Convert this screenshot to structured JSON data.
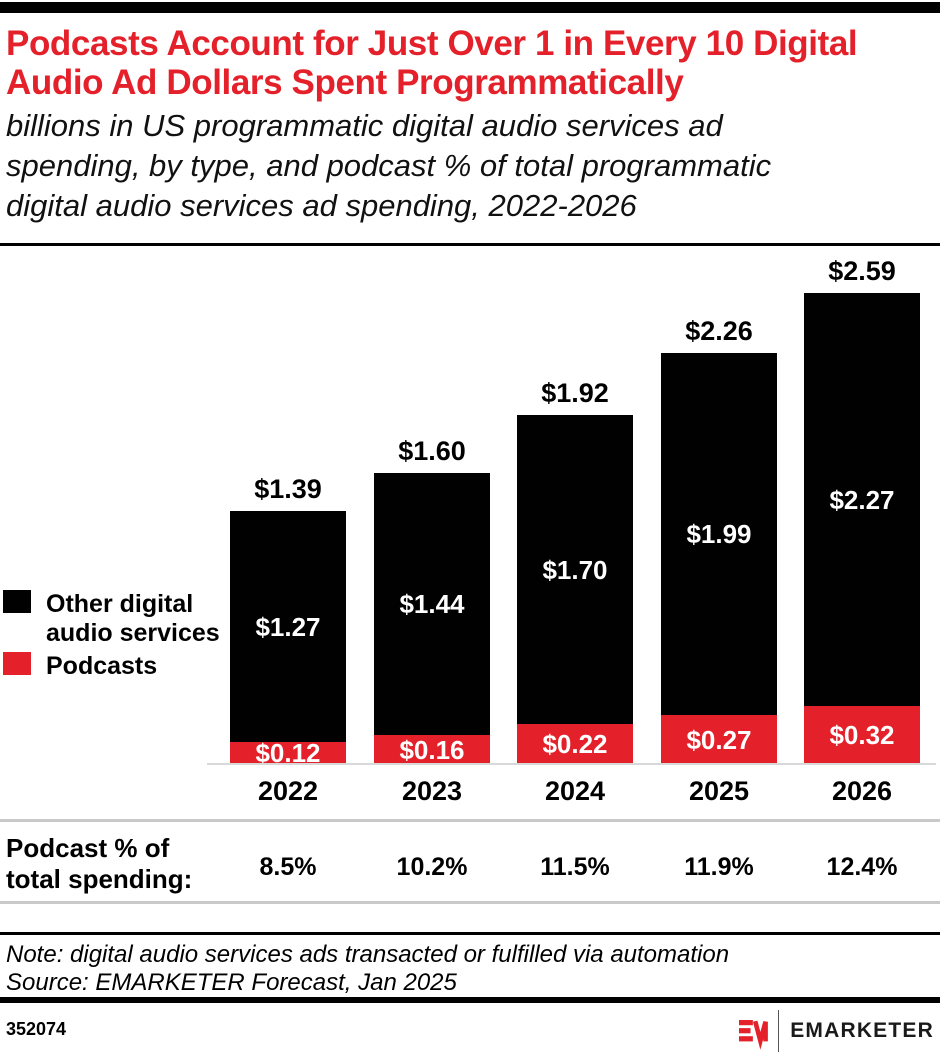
{
  "colors": {
    "accent_red": "#E4212A",
    "bar_black": "#010101",
    "axis_gray": "#D8D8D8",
    "rule_gray": "#C9C9C9",
    "text_black": "#000000",
    "label_white": "#FFFFFF"
  },
  "header": {
    "title_lines": [
      "Podcasts Account for Just Over 1 in Every 10 Digital",
      "Audio Ad Dollars Spent Programmatically"
    ],
    "subtitle_lines": [
      "billions in US programmatic digital audio services ad",
      "spending, by type, and podcast % of total programmatic",
      "digital audio services ad spending, 2022-2026"
    ]
  },
  "legend": {
    "items": [
      {
        "label": "Other digital audio services",
        "color": "#010101"
      },
      {
        "label": "Podcasts",
        "color": "#E4212A"
      }
    ]
  },
  "chart_data": {
    "type": "bar",
    "stacked": true,
    "unit": "$ billions",
    "categories": [
      "2022",
      "2023",
      "2024",
      "2025",
      "2026"
    ],
    "series": [
      {
        "name": "Podcasts",
        "color": "#E4212A",
        "values": [
          0.12,
          0.16,
          0.22,
          0.27,
          0.32
        ],
        "labels": [
          "$0.12",
          "$0.16",
          "$0.22",
          "$0.27",
          "$0.32"
        ]
      },
      {
        "name": "Other digital audio services",
        "color": "#010101",
        "values": [
          1.27,
          1.44,
          1.7,
          1.99,
          2.27
        ],
        "labels": [
          "$1.27",
          "$1.44",
          "$1.70",
          "$1.99",
          "$2.27"
        ]
      }
    ],
    "totals": {
      "values": [
        1.39,
        1.6,
        1.92,
        2.26,
        2.59
      ],
      "labels": [
        "$1.39",
        "$1.60",
        "$1.92",
        "$2.26",
        "$2.59"
      ]
    },
    "percent_row": {
      "label_lines": [
        "Podcast % of",
        "total spending:"
      ],
      "label": "Podcast % of total spending:",
      "values_pct": [
        8.5,
        10.2,
        11.5,
        11.9,
        12.4
      ],
      "labels": [
        "8.5%",
        "10.2%",
        "11.5%",
        "11.9%",
        "12.4%"
      ]
    },
    "ylim": [
      0,
      2.8
    ],
    "grid": false,
    "legend_position": "left"
  },
  "footnotes": {
    "note": "Note: digital audio services ads transacted or fulfilled via automation",
    "source": "Source: EMARKETER Forecast, Jan 2025"
  },
  "footer": {
    "chart_id": "352074",
    "brand": "EMARKETER"
  }
}
